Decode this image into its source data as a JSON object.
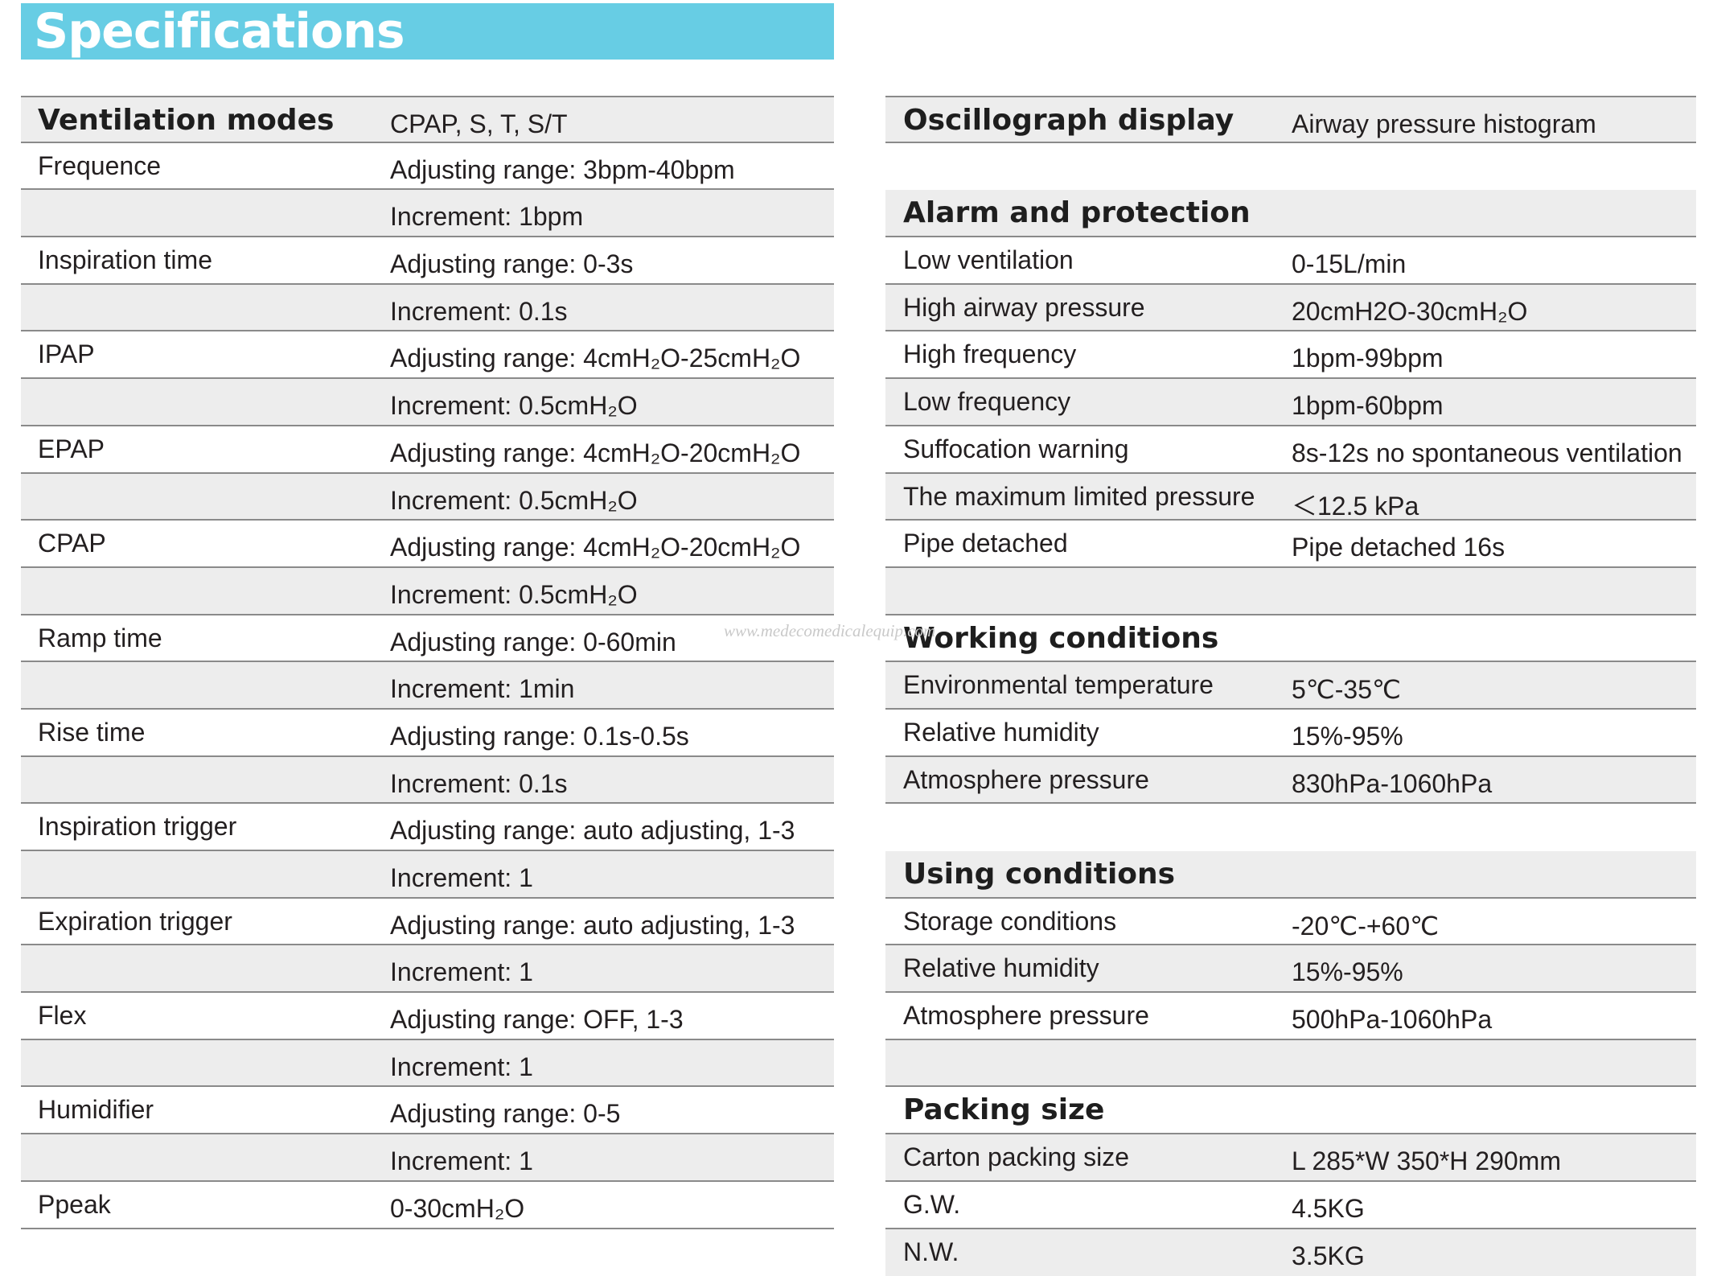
{
  "title": "Specifications",
  "watermark": "www.medecomedicalequip.com",
  "left_rows": [
    {
      "label": "Ventilation modes",
      "value": "CPAP, S, T, S/T"
    },
    {
      "label": "Frequence",
      "value": "Adjusting range: 3bpm-40bpm"
    },
    {
      "label": "",
      "value": "Increment: 1bpm"
    },
    {
      "label": "Inspiration time",
      "value": "Adjusting range: 0-3s"
    },
    {
      "label": "",
      "value": "Increment: 0.1s"
    },
    {
      "label": "IPAP",
      "value": "Adjusting range: 4cmH₂O-25cmH₂O"
    },
    {
      "label": "",
      "value": "Increment: 0.5cmH₂O"
    },
    {
      "label": "EPAP",
      "value": "Adjusting range: 4cmH₂O-20cmH₂O"
    },
    {
      "label": "",
      "value": "Increment: 0.5cmH₂O"
    },
    {
      "label": "CPAP",
      "value": "Adjusting range: 4cmH₂O-20cmH₂O"
    },
    {
      "label": "",
      "value": "Increment: 0.5cmH₂O"
    },
    {
      "label": "Ramp time",
      "value": "Adjusting range: 0-60min"
    },
    {
      "label": "",
      "value": "Increment: 1min"
    },
    {
      "label": "Rise time",
      "value": "Adjusting range: 0.1s-0.5s"
    },
    {
      "label": "",
      "value": "Increment: 0.1s"
    },
    {
      "label": "Inspiration trigger",
      "value": "Adjusting range: auto adjusting, 1-3"
    },
    {
      "label": "",
      "value": "Increment: 1"
    },
    {
      "label": "Expiration trigger",
      "value": "Adjusting range: auto adjusting, 1-3"
    },
    {
      "label": "",
      "value": "Increment: 1"
    },
    {
      "label": "Flex",
      "value": "Adjusting range: OFF, 1-3"
    },
    {
      "label": "",
      "value": "Increment: 1"
    },
    {
      "label": "Humidifier",
      "value": "Adjusting range: 0-5"
    },
    {
      "label": "",
      "value": "Increment: 1"
    },
    {
      "label": "Ppeak",
      "value": "0-30cmH₂O"
    }
  ],
  "right_rows": [
    {
      "label": "Oscillograph display",
      "value": "Airway pressure histogram"
    },
    {
      "label": "",
      "value": ""
    },
    {
      "label": "Alarm and protection",
      "value": ""
    },
    {
      "label": "Low ventilation",
      "value": "0-15L/min"
    },
    {
      "label": "High airway pressure",
      "value": "20cmH2O-30cmH₂O"
    },
    {
      "label": "High frequency",
      "value": "1bpm-99bpm"
    },
    {
      "label": "Low frequency",
      "value": "1bpm-60bpm"
    },
    {
      "label": "Suffocation warning",
      "value": "8s-12s no spontaneous ventilation"
    },
    {
      "label": "The maximum limited pressure",
      "value": "＜12.5 kPa"
    },
    {
      "label": "Pipe detached",
      "value": "Pipe detached 16s"
    },
    {
      "label": "",
      "value": ""
    },
    {
      "label": "Working conditions",
      "value": ""
    },
    {
      "label": "Environmental temperature",
      "value": "5℃-35℃"
    },
    {
      "label": "Relative humidity",
      "value": "15%-95%"
    },
    {
      "label": "Atmosphere pressure",
      "value": "830hPa-1060hPa"
    },
    {
      "label": "",
      "value": ""
    },
    {
      "label": "Using conditions",
      "value": ""
    },
    {
      "label": "Storage conditions",
      "value": "-20℃-+60℃"
    },
    {
      "label": "Relative humidity",
      "value": "15%-95%"
    },
    {
      "label": "Atmosphere pressure",
      "value": "500hPa-1060hPa"
    },
    {
      "label": "",
      "value": ""
    },
    {
      "label": "Packing size",
      "value": ""
    },
    {
      "label": "Carton packing size",
      "value": "L 285*W 350*H 290mm"
    },
    {
      "label": "G.W.",
      "value": "4.5KG"
    },
    {
      "label": "N.W.",
      "value": "3.5KG"
    }
  ]
}
